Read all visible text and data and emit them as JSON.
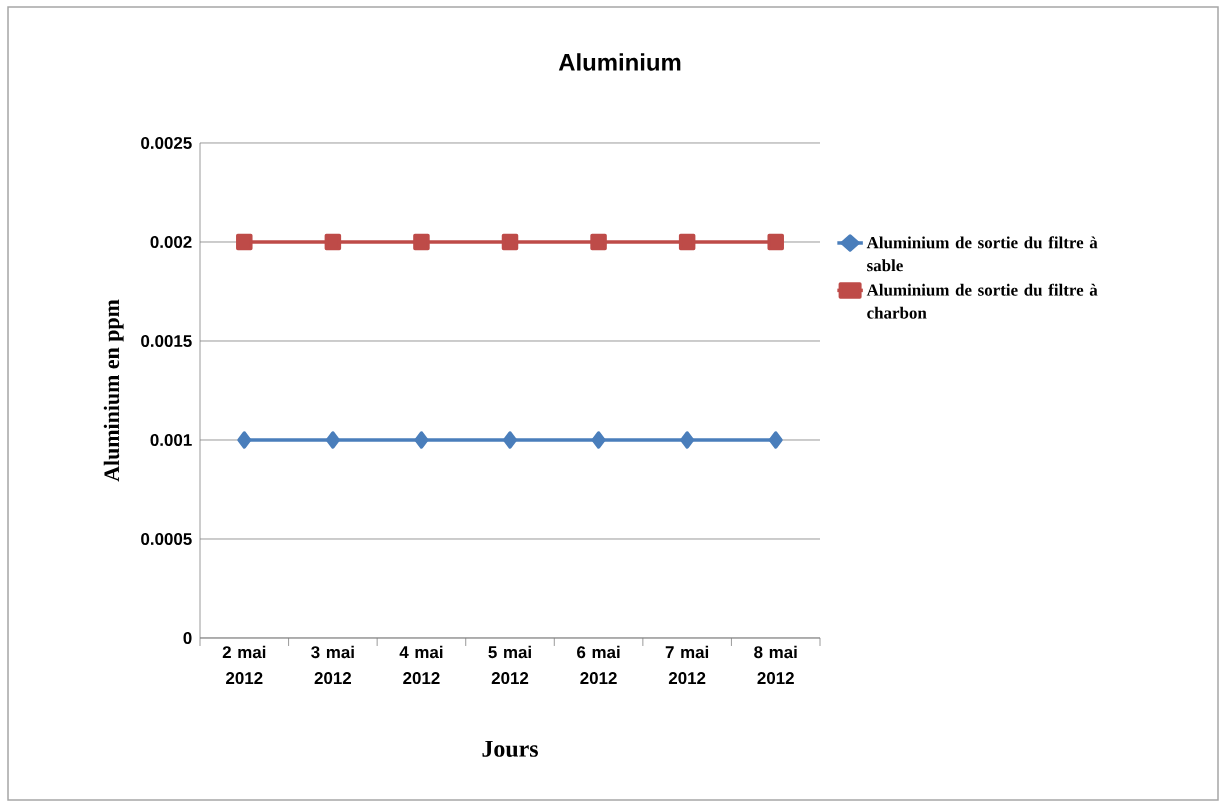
{
  "chart_data": {
    "type": "line",
    "title": "Aluminium",
    "xlabel": "Jours",
    "ylabel": "Aluminium en ppm",
    "categories": [
      "2 mai 2012",
      "3 mai 2012",
      "4 mai 2012",
      "5 mai 2012",
      "6 mai 2012",
      "7 mai 2012",
      "8 mai 2012"
    ],
    "series": [
      {
        "name": "Aluminium de sortie du filtre à sable",
        "color": "#4a7ebb",
        "marker": "diamond",
        "values": [
          0.001,
          0.001,
          0.001,
          0.001,
          0.001,
          0.001,
          0.001
        ]
      },
      {
        "name": "Aluminium de sortie du filtre à charbon",
        "color": "#be4b48",
        "marker": "square",
        "values": [
          0.002,
          0.002,
          0.002,
          0.002,
          0.002,
          0.002,
          0.002
        ]
      }
    ],
    "ylim": [
      0,
      0.0025
    ],
    "yticks": [
      0,
      0.0005,
      0.001,
      0.0015,
      0.002,
      0.0025
    ],
    "grid": "y",
    "legend": "right"
  }
}
